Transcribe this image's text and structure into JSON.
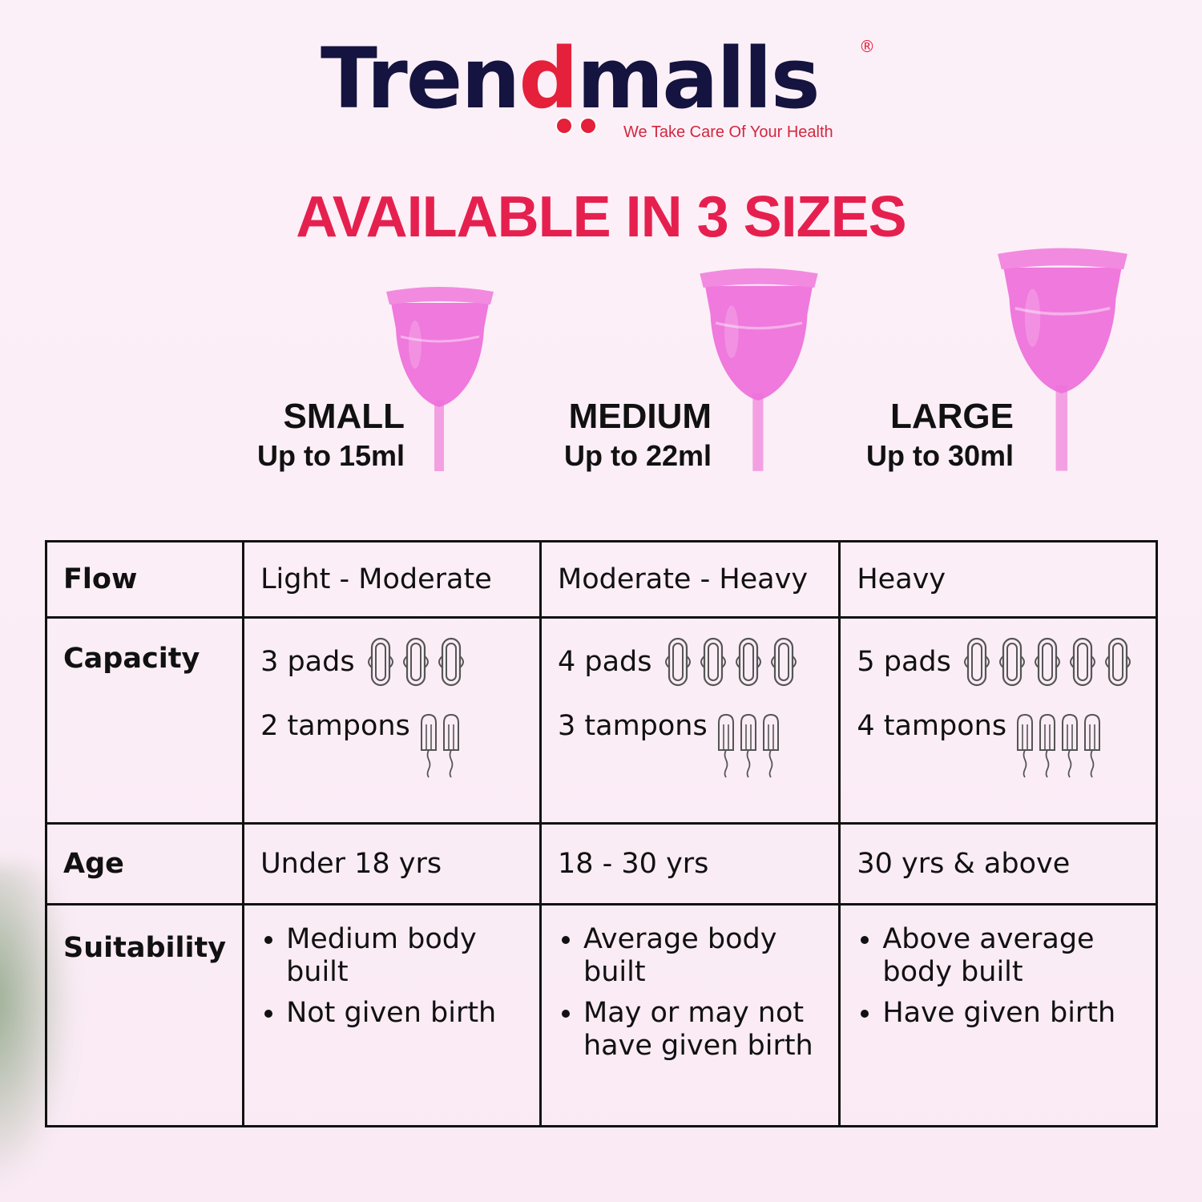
{
  "brand": {
    "name_part1": "Tren",
    "name_part2": "malls",
    "mark_glyph": "d",
    "registered": "®",
    "tagline": "We Take Care Of Your Health",
    "colors": {
      "navy": "#15133f",
      "red": "#e5203a"
    }
  },
  "headline": "AVAILABLE IN 3 SIZES",
  "sizes": [
    {
      "name": "SMALL",
      "capacity": "Up to 15ml"
    },
    {
      "name": "MEDIUM",
      "capacity": "Up to 22ml"
    },
    {
      "name": "LARGE",
      "capacity": "Up to 30ml"
    }
  ],
  "cup_color": "#ee6fd9",
  "table": {
    "rows": [
      {
        "label": "Flow",
        "cells": [
          "Light - Moderate",
          "Moderate - Heavy",
          "Heavy"
        ]
      },
      {
        "label": "Capacity",
        "cells": [
          {
            "pads": "3 pads",
            "pad_count": 3,
            "tampons": "2 tampons",
            "tampon_count": 2
          },
          {
            "pads": "4 pads",
            "pad_count": 4,
            "tampons": "3 tampons",
            "tampon_count": 3
          },
          {
            "pads": "5 pads",
            "pad_count": 5,
            "tampons": "4 tampons",
            "tampon_count": 4
          }
        ]
      },
      {
        "label": "Age",
        "cells": [
          "Under 18 yrs",
          "18 - 30 yrs",
          "30 yrs & above"
        ]
      },
      {
        "label": "Suitability",
        "cells": [
          [
            "Medium body built",
            "Not given birth"
          ],
          [
            "Average body built",
            "May or may not have given birth"
          ],
          [
            "Above average body built",
            "Have given birth"
          ]
        ]
      }
    ]
  }
}
